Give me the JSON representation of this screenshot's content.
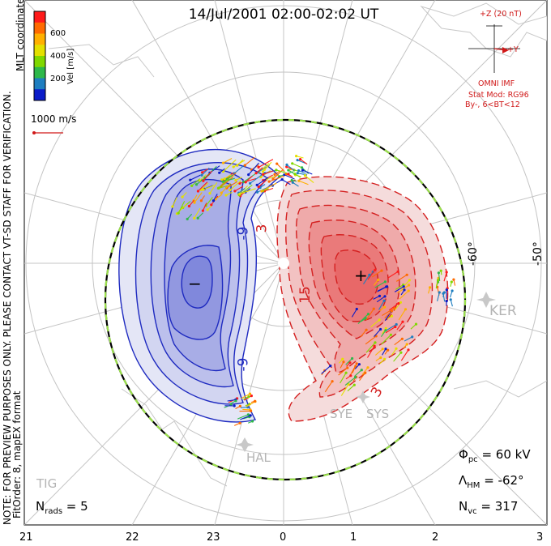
{
  "title": "14/Jul/2001 02:00-02:02 UT",
  "color_scale": {
    "label": "Vel [m/s]",
    "ticks": [
      "600",
      "400",
      "200"
    ],
    "colors": [
      "#ff1a1a",
      "#ff6a00",
      "#ffb000",
      "#e4e000",
      "#80d800",
      "#2eb84a",
      "#1e7ec0",
      "#0a1cc8"
    ]
  },
  "coord_label": "MLT coordinates",
  "velocity_scale_label": "1000 m/s",
  "imf": {
    "z_label": "+Z (20 nT)",
    "y_label": "+Y",
    "source": "OMNI IMF",
    "model": "Stat Mod: RG96",
    "condition": "By-, 6<BT<12"
  },
  "note_line1": "NOTE: FOR PREVIEW PURPOSES ONLY. PLEASE CONTACT VT-SD STAFF FOR VERIFICATION.",
  "note_line2": "FitOrder: 8, mapEX format",
  "stats": {
    "phi_symbol": "Φ",
    "phi_sub": "pc",
    "phi_value": " = 60 kV",
    "lambda_symbol": "Λ",
    "lambda_sub": "HM",
    "lambda_value": " = -62°",
    "nvc_symbol": "N",
    "nvc_sub": "vc",
    "nvc_value": " = 317",
    "nrads_symbol": "N",
    "nrads_sub": "rads",
    "nrads_value": " = 5"
  },
  "mlt_labels": [
    "21",
    "22",
    "23",
    "0",
    "1",
    "2",
    "3"
  ],
  "lat_labels": [
    "-60°",
    "-50°"
  ],
  "stations": [
    "KER",
    "HAL",
    "SYE",
    "SYS",
    "TIG"
  ],
  "contour_labels": [
    "-9",
    "-9",
    "3",
    "3",
    "15"
  ],
  "extrema_marks": {
    "min": "−",
    "max": "+"
  }
}
